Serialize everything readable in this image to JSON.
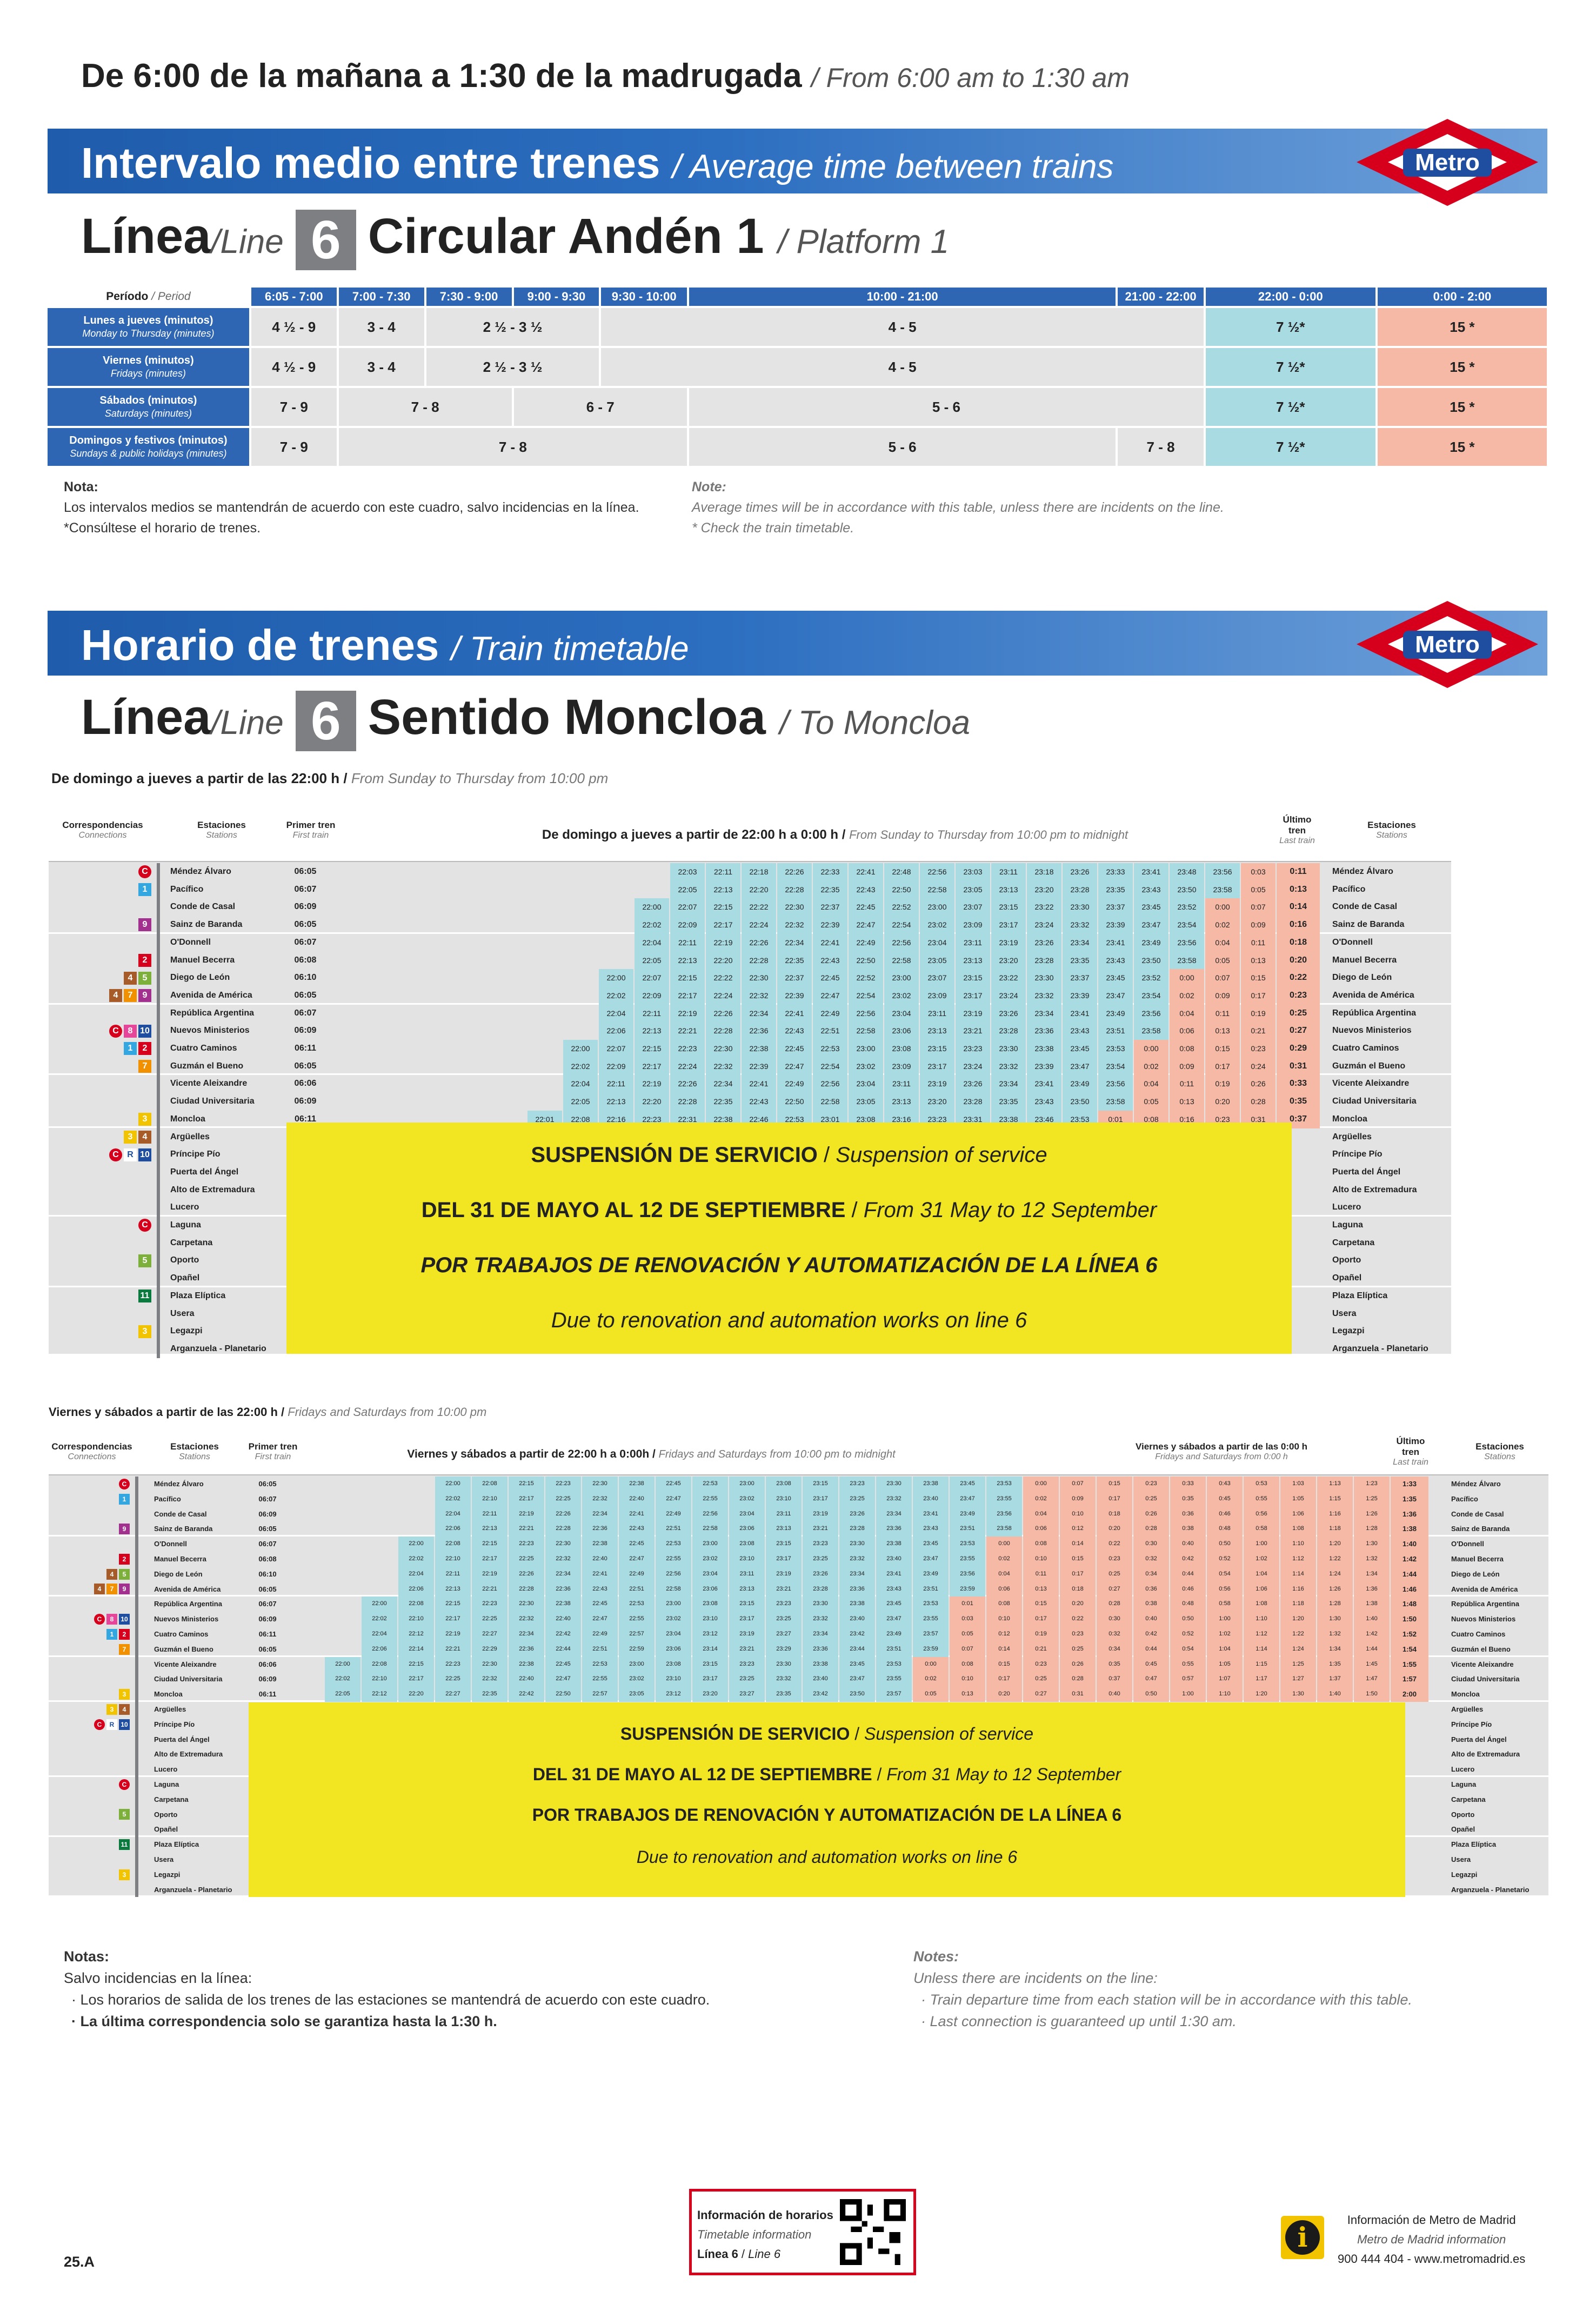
{
  "header": {
    "title_es": "De 6:00 de la mañana a 1:30 de la madrugada",
    "title_en": "From 6:00 am to 1:30 am"
  },
  "interval": {
    "banner_es": "Intervalo medio entre trenes",
    "banner_en": "Average time between trains",
    "line_es": "Línea",
    "line_en": "Line",
    "line_no": "6",
    "platform_es": "Circular Andén 1",
    "platform_en": "Platform 1",
    "period_es": "Período",
    "period_en": "Period",
    "periods": [
      "6:05 - 7:00",
      "7:00 - 7:30",
      "7:30 - 9:00",
      "9:00 - 9:30",
      "9:30 - 10:00",
      "10:00 - 21:00",
      "21:00 - 22:00",
      "22:00 - 0:00",
      "0:00 - 2:00"
    ],
    "rows": [
      {
        "es": "Lunes a jueves (minutos)",
        "en": "Monday to Thursday (minutes)",
        "v": [
          "4 ½ - 9",
          "3 - 4",
          "2 ½ - 3 ½",
          "4 - 5",
          "7 ½*",
          "15 *"
        ]
      },
      {
        "es": "Viernes (minutos)",
        "en": "Fridays (minutes)",
        "v": [
          "4 ½ - 9",
          "3 - 4",
          "2 ½ - 3 ½",
          "4 - 5",
          "7 ½*",
          "15 *"
        ]
      },
      {
        "es": "Sábados (minutos)",
        "en": "Saturdays (minutes)",
        "v": [
          "7 - 9",
          "7 - 8",
          "6 - 7",
          "5 - 6",
          "7 ½*",
          "15 *"
        ]
      },
      {
        "es": "Domingos y festivos (minutos)",
        "en": "Sundays & public holidays (minutes)",
        "v": [
          "7 - 9",
          "7 - 8",
          "5 - 6",
          "7 - 8",
          "7 ½*",
          "15 *"
        ]
      }
    ],
    "note_title_es": "Nota:",
    "note1_es": "Los intervalos medios se mantendrán de acuerdo con este cuadro, salvo incidencias en la línea.",
    "note2_es": "*Consúltese el horario de trenes.",
    "note_title_en": "Note:",
    "note1_en": "Average times will be in accordance with this table, unless there are incidents on the line.",
    "note2_en": "* Check the train timetable."
  },
  "timetable": {
    "banner_es": "Horario de trenes",
    "banner_en": "Train timetable",
    "direction_es": "Sentido Moncloa",
    "direction_en": "To Moncloa",
    "sub1_es": "De domingo a jueves a partir de las 22:00 h",
    "sub1_en": "From Sunday to Thursday from 10:00 pm",
    "col_conn_es": "Correspondencias",
    "col_conn_en": "Connections",
    "col_st_es": "Estaciones",
    "col_st_en": "Stations",
    "col_first_es": "Primer tren",
    "col_first_en": "First train",
    "col_last_es": "Último tren",
    "col_last_en": "Last train",
    "t1_head_es": "De domingo a jueves a partir de 22:00 h a 0:00 h",
    "t1_head_en": "From Sunday to Thursday from 10:00 pm to midnight",
    "stations": [
      "Méndez Álvaro",
      "Pacífico",
      "Conde de Casal",
      "Sainz de Baranda",
      "O'Donnell",
      "Manuel Becerra",
      "Diego de León",
      "Avenida de América",
      "República Argentina",
      "Nuevos Ministerios",
      "Cuatro Caminos",
      "Guzmán el Bueno",
      "Vicente Aleixandre",
      "Ciudad Universitaria",
      "Moncloa",
      "Argüelles",
      "Príncipe Pío",
      "Puerta del Ángel",
      "Alto de Extremadura",
      "Lucero",
      "Laguna",
      "Carpetana",
      "Oporto",
      "Opañel",
      "Plaza Elíptica",
      "Usera",
      "Legazpi",
      "Arganzuela - Planetario"
    ],
    "first1": [
      "06:05",
      "06:07",
      "06:09",
      "06:05",
      "06:07",
      "06:08",
      "06:10",
      "06:05",
      "06:07",
      "06:09",
      "06:11",
      "06:05",
      "06:06",
      "06:09",
      "06:11"
    ],
    "last1": [
      "0:11",
      "0:13",
      "0:14",
      "0:16",
      "0:18",
      "0:20",
      "0:22",
      "0:23",
      "0:25",
      "0:27",
      "0:29",
      "0:31",
      "0:33",
      "0:35",
      "0:37"
    ],
    "t1": [
      [
        "22:03",
        "22:11",
        "22:18",
        "22:26",
        "22:33",
        "22:41",
        "22:48",
        "22:56",
        "23:03",
        "23:11",
        "23:18",
        "23:26",
        "23:33",
        "23:41",
        "23:48",
        "23:56",
        "0:03"
      ],
      [
        "22:05",
        "22:13",
        "22:20",
        "22:28",
        "22:35",
        "22:43",
        "22:50",
        "22:58",
        "23:05",
        "23:13",
        "23:20",
        "23:28",
        "23:35",
        "23:43",
        "23:50",
        "23:58",
        "0:05"
      ],
      [
        "22:00",
        "22:07",
        "22:15",
        "22:22",
        "22:30",
        "22:37",
        "22:45",
        "22:52",
        "23:00",
        "23:07",
        "23:15",
        "23:22",
        "23:30",
        "23:37",
        "23:45",
        "23:52",
        "0:00",
        "0:07"
      ],
      [
        "22:02",
        "22:09",
        "22:17",
        "22:24",
        "22:32",
        "22:39",
        "22:47",
        "22:54",
        "23:02",
        "23:09",
        "23:17",
        "23:24",
        "23:32",
        "23:39",
        "23:47",
        "23:54",
        "0:02",
        "0:09"
      ],
      [
        "22:04",
        "22:11",
        "22:19",
        "22:26",
        "22:34",
        "22:41",
        "22:49",
        "22:56",
        "23:04",
        "23:11",
        "23:19",
        "23:26",
        "23:34",
        "23:41",
        "23:49",
        "23:56",
        "0:04",
        "0:11"
      ],
      [
        "22:05",
        "22:13",
        "22:20",
        "22:28",
        "22:35",
        "22:43",
        "22:50",
        "22:58",
        "23:05",
        "23:13",
        "23:20",
        "23:28",
        "23:35",
        "23:43",
        "23:50",
        "23:58",
        "0:05",
        "0:13"
      ],
      [
        "22:00",
        "22:07",
        "22:15",
        "22:22",
        "22:30",
        "22:37",
        "22:45",
        "22:52",
        "23:00",
        "23:07",
        "23:15",
        "23:22",
        "23:30",
        "23:37",
        "23:45",
        "23:52",
        "0:00",
        "0:07",
        "0:15"
      ],
      [
        "22:02",
        "22:09",
        "22:17",
        "22:24",
        "22:32",
        "22:39",
        "22:47",
        "22:54",
        "23:02",
        "23:09",
        "23:17",
        "23:24",
        "23:32",
        "23:39",
        "23:47",
        "23:54",
        "0:02",
        "0:09",
        "0:17"
      ],
      [
        "22:04",
        "22:11",
        "22:19",
        "22:26",
        "22:34",
        "22:41",
        "22:49",
        "22:56",
        "23:04",
        "23:11",
        "23:19",
        "23:26",
        "23:34",
        "23:41",
        "23:49",
        "23:56",
        "0:04",
        "0:11",
        "0:19"
      ],
      [
        "22:06",
        "22:13",
        "22:21",
        "22:28",
        "22:36",
        "22:43",
        "22:51",
        "22:58",
        "23:06",
        "23:13",
        "23:21",
        "23:28",
        "23:36",
        "23:43",
        "23:51",
        "23:58",
        "0:06",
        "0:13",
        "0:21"
      ],
      [
        "22:00",
        "22:07",
        "22:15",
        "22:23",
        "22:30",
        "22:38",
        "22:45",
        "22:53",
        "23:00",
        "23:08",
        "23:15",
        "23:23",
        "23:30",
        "23:38",
        "23:45",
        "23:53",
        "0:00",
        "0:08",
        "0:15",
        "0:23"
      ],
      [
        "22:02",
        "22:09",
        "22:17",
        "22:24",
        "22:32",
        "22:39",
        "22:47",
        "22:54",
        "23:02",
        "23:09",
        "23:17",
        "23:24",
        "23:32",
        "23:39",
        "23:47",
        "23:54",
        "0:02",
        "0:09",
        "0:17",
        "0:24"
      ],
      [
        "22:04",
        "22:11",
        "22:19",
        "22:26",
        "22:34",
        "22:41",
        "22:49",
        "22:56",
        "23:04",
        "23:11",
        "23:19",
        "23:26",
        "23:34",
        "23:41",
        "23:49",
        "23:56",
        "0:04",
        "0:11",
        "0:19",
        "0:26"
      ],
      [
        "22:05",
        "22:13",
        "22:20",
        "22:28",
        "22:35",
        "22:43",
        "22:50",
        "22:58",
        "23:05",
        "23:13",
        "23:20",
        "23:28",
        "23:35",
        "23:43",
        "23:50",
        "23:58",
        "0:05",
        "0:13",
        "0:20",
        "0:28"
      ],
      [
        "22:01",
        "22:08",
        "22:16",
        "22:23",
        "22:31",
        "22:38",
        "22:46",
        "22:53",
        "23:01",
        "23:08",
        "23:16",
        "23:23",
        "23:31",
        "23:38",
        "23:46",
        "23:53",
        "0:01",
        "0:08",
        "0:16",
        "0:23",
        "0:31"
      ]
    ],
    "susp1": "SUSPENSIÓN DE SERVICIO",
    "susp1_en": "Suspension of service",
    "susp2": "DEL 31 DE MAYO AL 12 DE SEPTIEMBRE",
    "susp2_en": "From 31 May to 12 September",
    "susp3": "POR TRABAJOS DE RENOVACIÓN Y AUTOMATIZACIÓN DE LA LÍNEA 6",
    "susp4": "Due to renovation and automation works on line 6",
    "sub2_es": "Viernes y sábados a partir de las 22:00 h",
    "sub2_en": "Fridays and Saturdays from 10:00 pm",
    "t2_head_es": "Viernes y sábados a partir de 22:00 h a 0:00h",
    "t2_head_en": "Fridays and Saturdays from 10:00 pm to midnight",
    "t2_head2_es": "Viernes y sábados a partir de las 0:00 h",
    "t2_head2_en": "Fridays and Saturdays from 0:00 h",
    "last2": [
      "1:33",
      "1:35",
      "1:36",
      "1:38",
      "1:40",
      "1:42",
      "1:44",
      "1:46",
      "1:48",
      "1:50",
      "1:52",
      "1:54",
      "1:55",
      "1:57",
      "2:00"
    ],
    "t2": [
      [
        "22:00",
        "22:08",
        "22:15",
        "22:23",
        "22:30",
        "22:38",
        "22:45",
        "22:53",
        "23:00",
        "23:08",
        "23:15",
        "23:23",
        "23:30",
        "23:38",
        "23:45",
        "23:53",
        "0:00",
        "0:07",
        "0:15",
        "0:23",
        "0:33",
        "0:43",
        "0:53",
        "1:03",
        "1:13",
        "1:23"
      ],
      [
        "22:02",
        "22:10",
        "22:17",
        "22:25",
        "22:32",
        "22:40",
        "22:47",
        "22:55",
        "23:02",
        "23:10",
        "23:17",
        "23:25",
        "23:32",
        "23:40",
        "23:47",
        "23:55",
        "0:02",
        "0:09",
        "0:17",
        "0:25",
        "0:35",
        "0:45",
        "0:55",
        "1:05",
        "1:15",
        "1:25"
      ],
      [
        "22:04",
        "22:11",
        "22:19",
        "22:26",
        "22:34",
        "22:41",
        "22:49",
        "22:56",
        "23:04",
        "23:11",
        "23:19",
        "23:26",
        "23:34",
        "23:41",
        "23:49",
        "23:56",
        "0:04",
        "0:10",
        "0:18",
        "0:26",
        "0:36",
        "0:46",
        "0:56",
        "1:06",
        "1:16",
        "1:26"
      ],
      [
        "22:06",
        "22:13",
        "22:21",
        "22:28",
        "22:36",
        "22:43",
        "22:51",
        "22:58",
        "23:06",
        "23:13",
        "23:21",
        "23:28",
        "23:36",
        "23:43",
        "23:51",
        "23:58",
        "0:06",
        "0:12",
        "0:20",
        "0:28",
        "0:38",
        "0:48",
        "0:58",
        "1:08",
        "1:18",
        "1:28"
      ],
      [
        "22:00",
        "22:08",
        "22:15",
        "22:23",
        "22:30",
        "22:38",
        "22:45",
        "22:53",
        "23:00",
        "23:08",
        "23:15",
        "23:23",
        "23:30",
        "23:38",
        "23:45",
        "23:53",
        "0:00",
        "0:08",
        "0:14",
        "0:22",
        "0:30",
        "0:40",
        "0:50",
        "1:00",
        "1:10",
        "1:20",
        "1:30"
      ],
      [
        "22:02",
        "22:10",
        "22:17",
        "22:25",
        "22:32",
        "22:40",
        "22:47",
        "22:55",
        "23:02",
        "23:10",
        "23:17",
        "23:25",
        "23:32",
        "23:40",
        "23:47",
        "23:55",
        "0:02",
        "0:10",
        "0:15",
        "0:23",
        "0:32",
        "0:42",
        "0:52",
        "1:02",
        "1:12",
        "1:22",
        "1:32"
      ],
      [
        "22:04",
        "22:11",
        "22:19",
        "22:26",
        "22:34",
        "22:41",
        "22:49",
        "22:56",
        "23:04",
        "23:11",
        "23:19",
        "23:26",
        "23:34",
        "23:41",
        "23:49",
        "23:56",
        "0:04",
        "0:11",
        "0:17",
        "0:25",
        "0:34",
        "0:44",
        "0:54",
        "1:04",
        "1:14",
        "1:24",
        "1:34"
      ],
      [
        "22:06",
        "22:13",
        "22:21",
        "22:28",
        "22:36",
        "22:43",
        "22:51",
        "22:58",
        "23:06",
        "23:13",
        "23:21",
        "23:28",
        "23:36",
        "23:43",
        "23:51",
        "23:59",
        "0:06",
        "0:13",
        "0:18",
        "0:27",
        "0:36",
        "0:46",
        "0:56",
        "1:06",
        "1:16",
        "1:26",
        "1:36"
      ],
      [
        "22:00",
        "22:08",
        "22:15",
        "22:23",
        "22:30",
        "22:38",
        "22:45",
        "22:53",
        "23:00",
        "23:08",
        "23:15",
        "23:23",
        "23:30",
        "23:38",
        "23:45",
        "23:53",
        "0:01",
        "0:08",
        "0:15",
        "0:20",
        "0:28",
        "0:38",
        "0:48",
        "0:58",
        "1:08",
        "1:18",
        "1:28",
        "1:38"
      ],
      [
        "22:02",
        "22:10",
        "22:17",
        "22:25",
        "22:32",
        "22:40",
        "22:47",
        "22:55",
        "23:02",
        "23:10",
        "23:17",
        "23:25",
        "23:32",
        "23:40",
        "23:47",
        "23:55",
        "0:03",
        "0:10",
        "0:17",
        "0:22",
        "0:30",
        "0:40",
        "0:50",
        "1:00",
        "1:10",
        "1:20",
        "1:30",
        "1:40"
      ],
      [
        "22:04",
        "22:12",
        "22:19",
        "22:27",
        "22:34",
        "22:42",
        "22:49",
        "22:57",
        "23:04",
        "23:12",
        "23:19",
        "23:27",
        "23:34",
        "23:42",
        "23:49",
        "23:57",
        "0:05",
        "0:12",
        "0:19",
        "0:23",
        "0:32",
        "0:42",
        "0:52",
        "1:02",
        "1:12",
        "1:22",
        "1:32",
        "1:42"
      ],
      [
        "22:06",
        "22:14",
        "22:21",
        "22:29",
        "22:36",
        "22:44",
        "22:51",
        "22:59",
        "23:06",
        "23:14",
        "23:21",
        "23:29",
        "23:36",
        "23:44",
        "23:51",
        "23:59",
        "0:07",
        "0:14",
        "0:21",
        "0:25",
        "0:34",
        "0:44",
        "0:54",
        "1:04",
        "1:14",
        "1:24",
        "1:34",
        "1:44"
      ],
      [
        "22:00",
        "22:08",
        "22:15",
        "22:23",
        "22:30",
        "22:38",
        "22:45",
        "22:53",
        "23:00",
        "23:08",
        "23:15",
        "23:23",
        "23:30",
        "23:38",
        "23:45",
        "23:53",
        "0:00",
        "0:08",
        "0:15",
        "0:23",
        "0:26",
        "0:35",
        "0:45",
        "0:55",
        "1:05",
        "1:15",
        "1:25",
        "1:35",
        "1:45"
      ],
      [
        "22:02",
        "22:10",
        "22:17",
        "22:25",
        "22:32",
        "22:40",
        "22:47",
        "22:55",
        "23:02",
        "23:10",
        "23:17",
        "23:25",
        "23:32",
        "23:40",
        "23:47",
        "23:55",
        "0:02",
        "0:10",
        "0:17",
        "0:25",
        "0:28",
        "0:37",
        "0:47",
        "0:57",
        "1:07",
        "1:17",
        "1:27",
        "1:37",
        "1:47"
      ],
      [
        "22:05",
        "22:12",
        "22:20",
        "22:27",
        "22:35",
        "22:42",
        "22:50",
        "22:57",
        "23:05",
        "23:12",
        "23:20",
        "23:27",
        "23:35",
        "23:42",
        "23:50",
        "23:57",
        "0:05",
        "0:13",
        "0:20",
        "0:27",
        "0:31",
        "0:40",
        "0:50",
        "1:00",
        "1:10",
        "1:20",
        "1:30",
        "1:40",
        "1:50"
      ]
    ],
    "notes_title_es": "Notas:",
    "notes_title_en": "Notes:",
    "notes_l1_es": "Salvo incidencias en la línea:",
    "notes_l2_es": "· Los horarios de salida de los trenes de las estaciones se mantendrá de acuerdo con este cuadro.",
    "notes_l3_es": "· La última correspondencia solo se garantiza hasta la 1:30 h.",
    "notes_l1_en": "Unless there are incidents on the line:",
    "notes_l2_en": "· Train departure time from each station will be in accordance with this table.",
    "notes_l3_en": "· Last connection is guaranteed up until 1:30 am."
  },
  "footer": {
    "code": "25.A",
    "info_es": "Información de horarios",
    "info_en": "Timetable information",
    "info_line_es": "Línea 6",
    "info_line_en": "Line 6",
    "metro_es": "Información de Metro de Madrid",
    "metro_en": "Metro de Madrid information",
    "metro_contact": "900 444 404 - www.metromadrid.es",
    "logo": "Metro"
  },
  "colors": {
    "blue": "#2f66b3",
    "cyan": "#a9dbe2",
    "salmon": "#f6b9a6",
    "yellow": "#f2e622",
    "red": "#d6001c"
  }
}
